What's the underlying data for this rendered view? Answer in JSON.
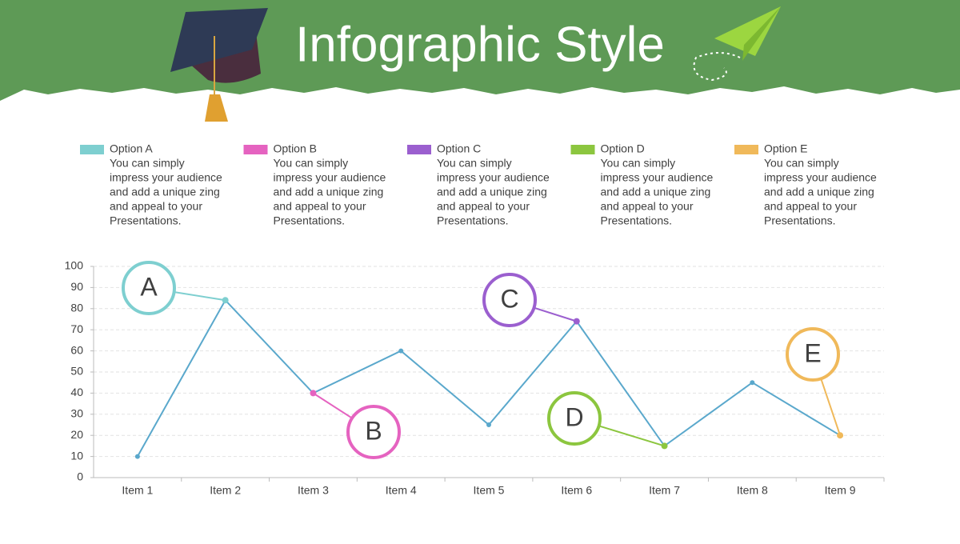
{
  "title": "Infographic Style",
  "options": [
    {
      "label": "Option A",
      "color": "#7ecfd0",
      "lines": [
        "You can simply",
        "impress your audience",
        "and add a unique zing",
        "and appeal to your",
        "Presentations."
      ]
    },
    {
      "label": "Option B",
      "color": "#e563c0",
      "lines": [
        "You can simply",
        "impress your audience",
        "and add a unique zing",
        "and appeal to your",
        "Presentations."
      ]
    },
    {
      "label": "Option C",
      "color": "#9b5fcf",
      "lines": [
        "You can simply",
        "impress your audience",
        "and add a unique zing",
        "and appeal to your",
        "Presentations."
      ]
    },
    {
      "label": "Option D",
      "color": "#8cc63f",
      "lines": [
        "You can simply",
        "impress your audience",
        "and add a unique zing",
        "and appeal to your",
        "Presentations."
      ]
    },
    {
      "label": "Option E",
      "color": "#f0b95a",
      "lines": [
        "You can simply",
        "impress your audience",
        "and add a unique zing",
        "and appeal to your",
        "Presentations."
      ]
    }
  ],
  "chart_data": {
    "type": "line",
    "categories": [
      "Item 1",
      "Item 2",
      "Item 3",
      "Item 4",
      "Item 5",
      "Item 6",
      "Item 7",
      "Item 8",
      "Item 9"
    ],
    "values": [
      10,
      84,
      40,
      60,
      25,
      74,
      15,
      45,
      20
    ],
    "color": "#5aa8cc",
    "ylim": [
      0,
      100
    ],
    "yticks": [
      0,
      10,
      20,
      30,
      40,
      50,
      60,
      70,
      80,
      90,
      100
    ],
    "grid": true,
    "callouts": [
      {
        "label": "A",
        "color": "#7ecfd0"
      },
      {
        "label": "B",
        "color": "#e563c0"
      },
      {
        "label": "C",
        "color": "#9b5fcf"
      },
      {
        "label": "D",
        "color": "#8cc63f"
      },
      {
        "label": "E",
        "color": "#f0b95a"
      }
    ]
  }
}
